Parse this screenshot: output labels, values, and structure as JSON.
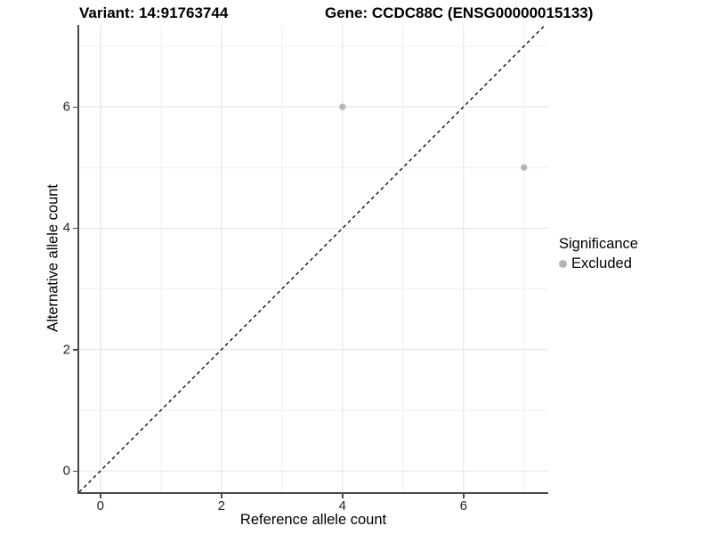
{
  "header": {
    "variant_title": "Variant: 14:91763744",
    "gene_title": "Gene: CCDC88C (ENSG00000015133)"
  },
  "chart_data": {
    "type": "scatter",
    "title": "Variant: 14:91763744 — Gene: CCDC88C (ENSG00000015133)",
    "xlabel": "Reference allele count",
    "ylabel": "Alternative allele count",
    "x_ticks": [
      0,
      2,
      4,
      6
    ],
    "y_ticks": [
      0,
      2,
      4,
      6
    ],
    "x_minor_gridlines": [
      1,
      3,
      5,
      7
    ],
    "y_minor_gridlines": [
      1,
      3,
      5,
      7
    ],
    "xlim": [
      -0.35,
      7.4
    ],
    "ylim": [
      -0.35,
      7.35
    ],
    "grid": true,
    "series": [
      {
        "name": "Excluded",
        "points": [
          {
            "x": 4,
            "y": 6
          },
          {
            "x": 7,
            "y": 5
          }
        ],
        "color": "#b5b5b5"
      }
    ],
    "identity_line": {
      "style": "dashed",
      "color": "#000000",
      "from": [
        -0.35,
        -0.35
      ],
      "to": [
        7.35,
        7.35
      ]
    },
    "legend": {
      "position": "right",
      "title": "Significance",
      "entries": [
        {
          "label": "Excluded",
          "color": "#b5b5b5"
        }
      ]
    },
    "colors": {
      "major_grid": "#e2e2e2",
      "minor_grid": "#efefef",
      "axis_line": "#4a4a4a",
      "tick_label": "#262626"
    }
  }
}
